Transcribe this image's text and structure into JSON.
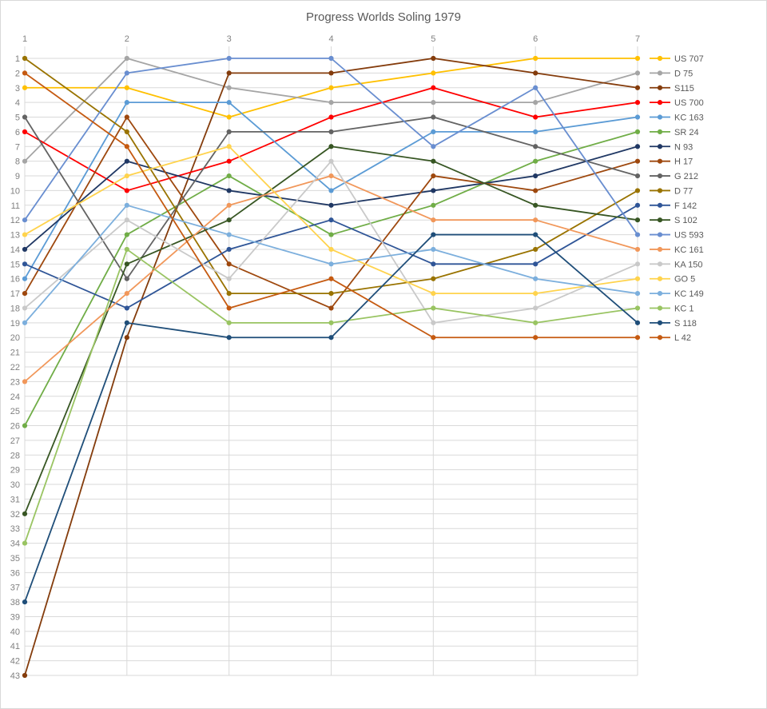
{
  "title": "Progress Worlds Soling 1979",
  "chart_data": {
    "type": "line",
    "title": "Progress Worlds Soling 1979",
    "xlabel": "",
    "ylabel": "",
    "x": [
      1,
      2,
      3,
      4,
      5,
      6,
      7
    ],
    "x_tick_labels": [
      "1",
      "2",
      "3",
      "4",
      "5",
      "6",
      "7"
    ],
    "y_axis": {
      "min": 1,
      "max": 43,
      "inverted": true,
      "tick_step": 1,
      "tick_labels": [
        "1",
        "2",
        "3",
        "4",
        "5",
        "6",
        "7",
        "8",
        "9",
        "10",
        "11",
        "12",
        "13",
        "14",
        "15",
        "16",
        "17",
        "18",
        "19",
        "20",
        "21",
        "22",
        "23",
        "24",
        "25",
        "26",
        "27",
        "28",
        "29",
        "30",
        "31",
        "32",
        "33",
        "34",
        "35",
        "36",
        "37",
        "38",
        "39",
        "40",
        "41",
        "42",
        "43"
      ]
    },
    "grid": true,
    "grid_color": "#d9d9d9",
    "marker": "circle",
    "legend_position": "right",
    "series": [
      {
        "name": "US 707",
        "color": "#FFC000",
        "values": [
          3,
          3,
          5,
          3,
          2,
          1,
          1
        ]
      },
      {
        "name": "D 75",
        "color": "#A5A5A5",
        "values": [
          8,
          1,
          3,
          4,
          4,
          4,
          2
        ]
      },
      {
        "name": "S115",
        "color": "#843C0C",
        "values": [
          43,
          20,
          2,
          2,
          1,
          2,
          3
        ]
      },
      {
        "name": "US 700",
        "color": "#FF0000",
        "values": [
          6,
          10,
          8,
          5,
          3,
          5,
          4
        ]
      },
      {
        "name": "KC 163",
        "color": "#5B9BD5",
        "values": [
          16,
          4,
          4,
          10,
          6,
          6,
          5
        ]
      },
      {
        "name": "SR 24",
        "color": "#70AD47",
        "values": [
          26,
          13,
          9,
          13,
          11,
          8,
          6
        ]
      },
      {
        "name": "N 93",
        "color": "#203864",
        "values": [
          14,
          8,
          10,
          11,
          10,
          9,
          7
        ]
      },
      {
        "name": "H 17",
        "color": "#9E480E",
        "values": [
          17,
          5,
          15,
          18,
          9,
          10,
          8
        ]
      },
      {
        "name": "G 212",
        "color": "#636363",
        "values": [
          5,
          16,
          6,
          6,
          5,
          7,
          9
        ]
      },
      {
        "name": "D 77",
        "color": "#997300",
        "values": [
          1,
          6,
          17,
          17,
          16,
          14,
          10
        ]
      },
      {
        "name": "F 142",
        "color": "#2F5597",
        "values": [
          15,
          18,
          14,
          12,
          15,
          15,
          11
        ]
      },
      {
        "name": "S 102",
        "color": "#375623",
        "values": [
          32,
          15,
          12,
          7,
          8,
          11,
          12
        ]
      },
      {
        "name": "US 593",
        "color": "#698ED0",
        "values": [
          12,
          2,
          1,
          1,
          7,
          3,
          13
        ]
      },
      {
        "name": "KC 161",
        "color": "#F1975A",
        "values": [
          23,
          17,
          11,
          9,
          12,
          12,
          14
        ]
      },
      {
        "name": "KA 150",
        "color": "#C9C9C9",
        "values": [
          18,
          12,
          16,
          8,
          19,
          18,
          15
        ]
      },
      {
        "name": "GO 5",
        "color": "#FFD34D",
        "values": [
          13,
          9,
          7,
          14,
          17,
          17,
          16
        ]
      },
      {
        "name": "KC 149",
        "color": "#7CAFDD",
        "values": [
          19,
          11,
          13,
          15,
          14,
          16,
          17
        ]
      },
      {
        "name": "KC 1",
        "color": "#99C462",
        "values": [
          34,
          14,
          19,
          19,
          18,
          19,
          18
        ]
      },
      {
        "name": "S 118",
        "color": "#1F4E79",
        "values": [
          38,
          19,
          20,
          20,
          13,
          13,
          19
        ]
      },
      {
        "name": "L 42",
        "color": "#C55A11",
        "values": [
          2,
          7,
          18,
          16,
          20,
          20,
          20
        ]
      }
    ]
  }
}
